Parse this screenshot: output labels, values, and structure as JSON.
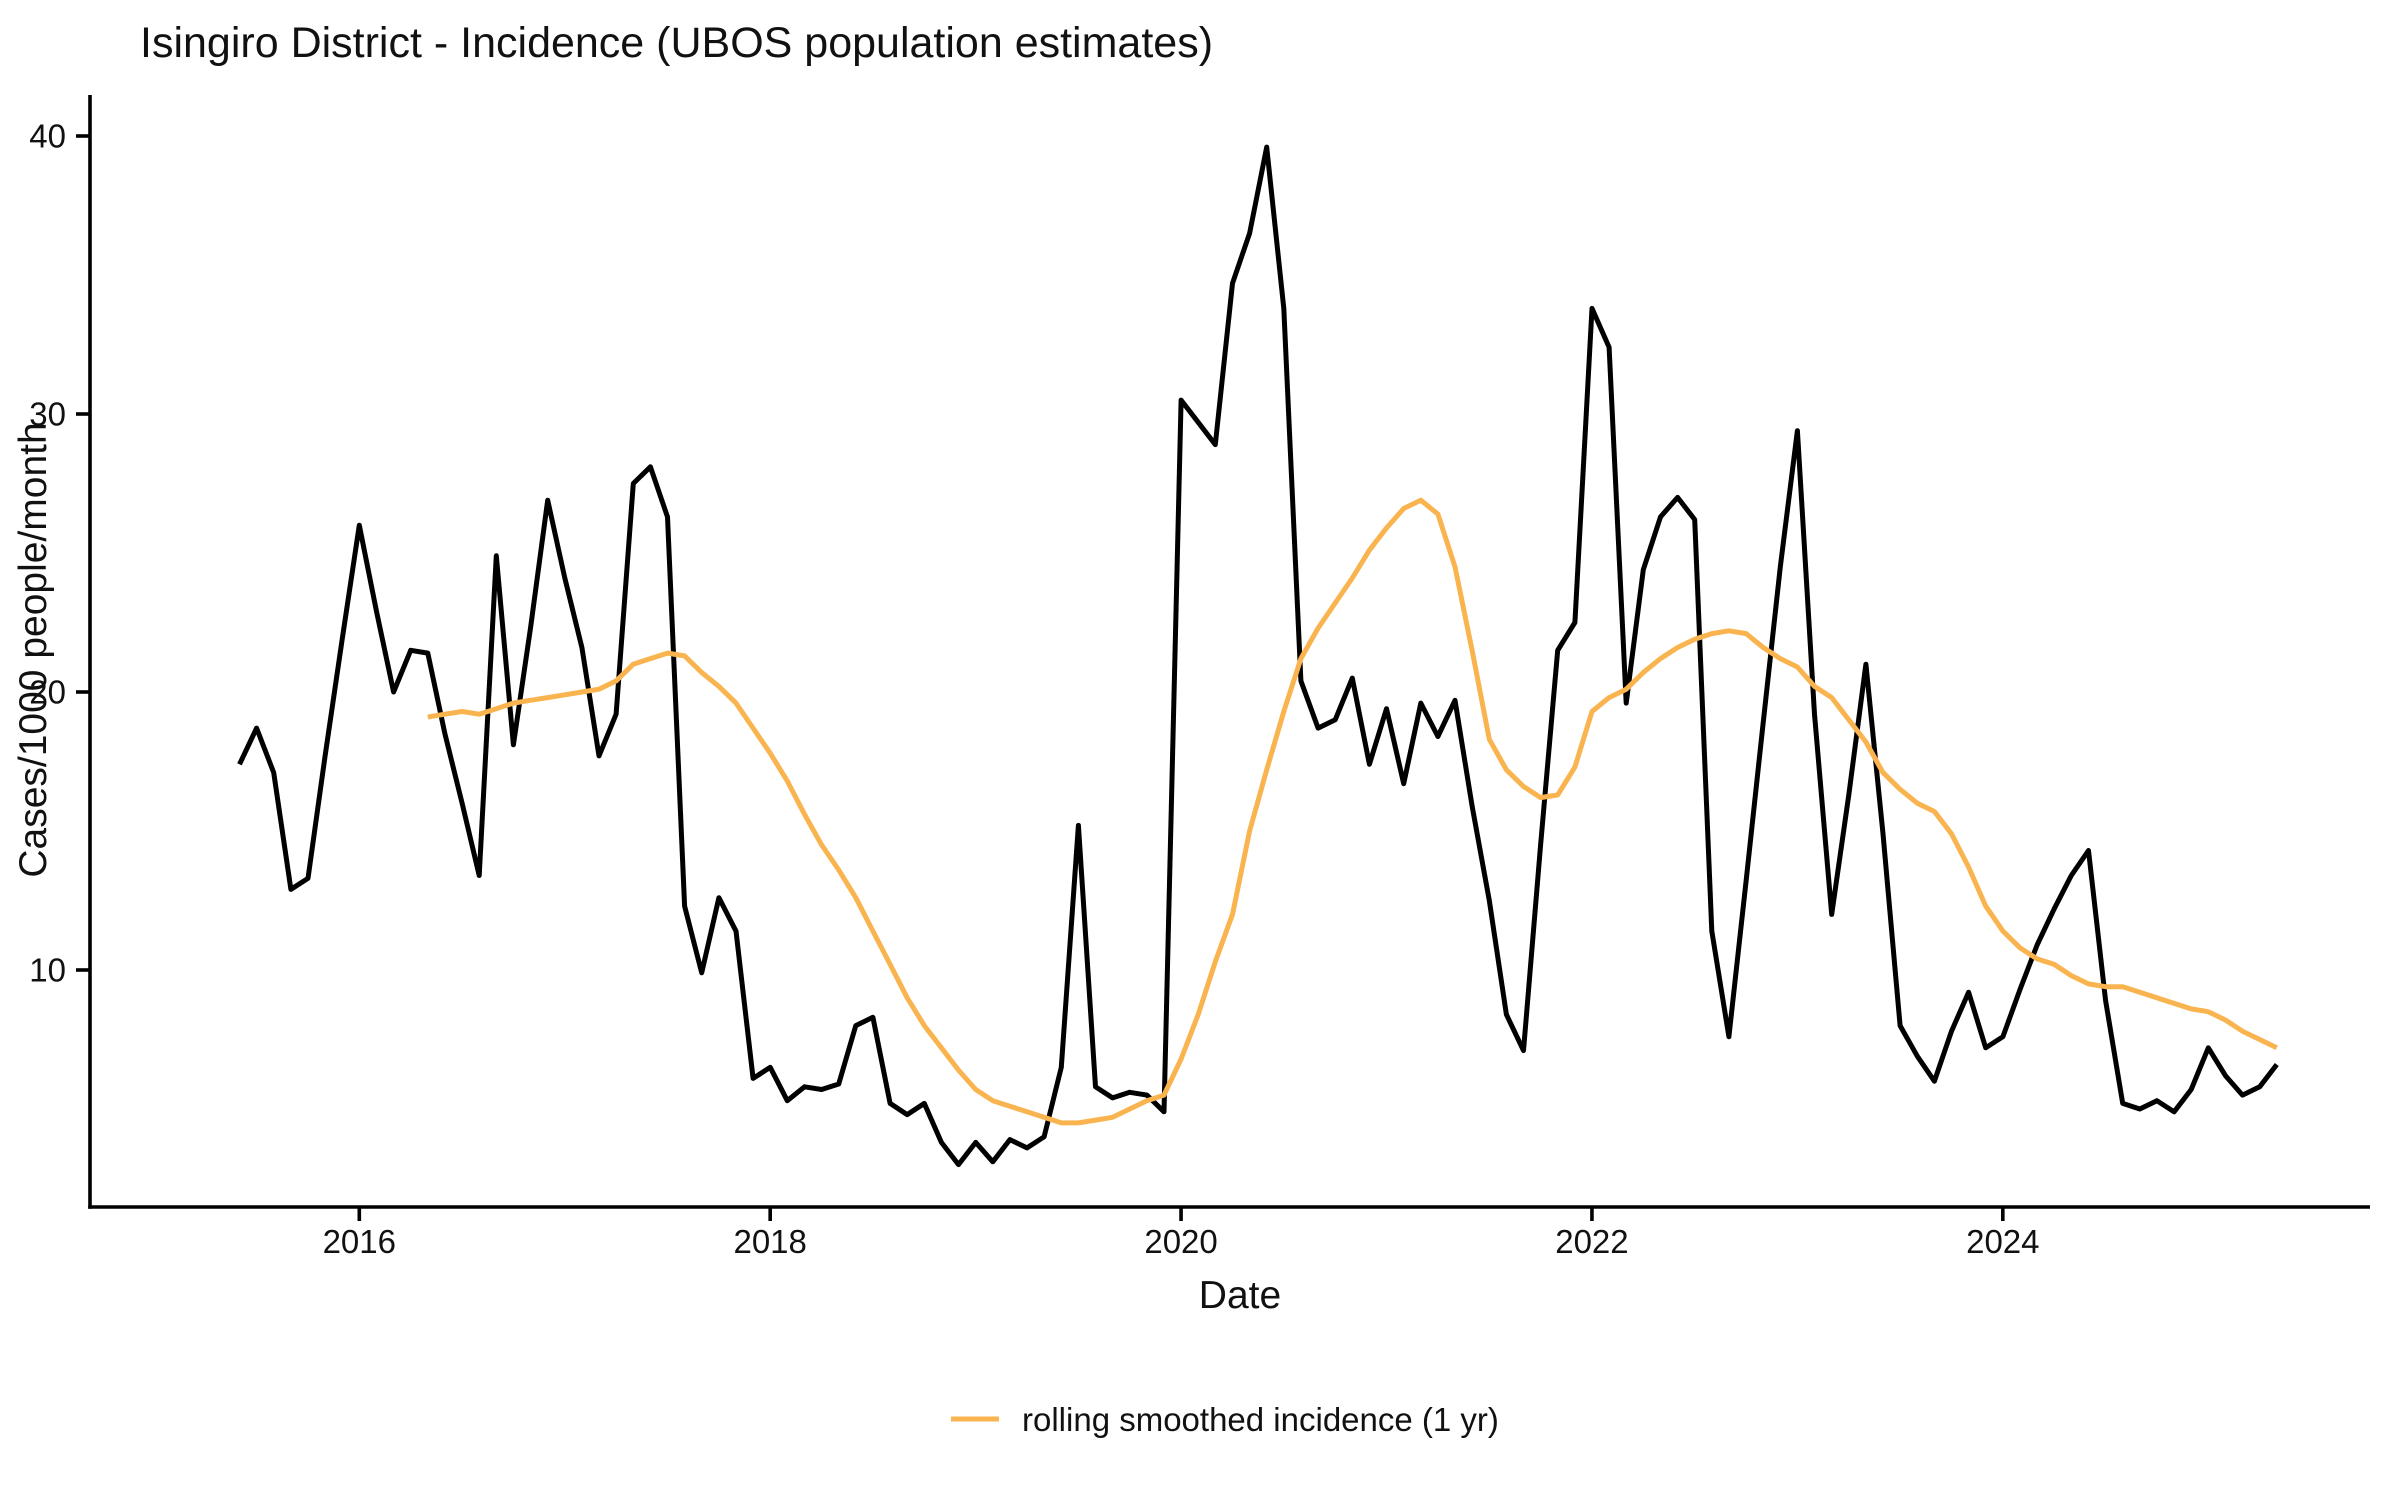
{
  "title": "Isingiro District - Incidence (UBOS population estimates)",
  "axes": {
    "x_label": "Date",
    "y_label": "Cases/1000 people/month",
    "y_ticks": [
      10,
      20,
      30,
      40
    ],
    "x_ticks": [
      2016,
      2018,
      2020,
      2022,
      2024
    ]
  },
  "legend": {
    "label": "rolling smoothed incidence (1 yr)",
    "swatch_color": "#F9B450"
  },
  "colors": {
    "raw_line": "#000000",
    "smoothed_line": "#F9B450",
    "axis": "#000000",
    "text": "#111111",
    "background": "#ffffff"
  },
  "chart_data": {
    "type": "line",
    "title": "Isingiro District - Incidence (UBOS population estimates)",
    "xlabel": "Date",
    "ylabel": "Cases/1000 people/month",
    "frequency": "monthly",
    "ylim": [
      1.5,
      41.5
    ],
    "grid": false,
    "legend_position": "bottom-center",
    "x_tick_years": [
      2016,
      2018,
      2020,
      2022,
      2024
    ],
    "y_tick_values": [
      10,
      20,
      30,
      40
    ],
    "series": [
      {
        "name": "monthly incidence",
        "color": "#000000",
        "start": "2015-06",
        "end": "2025-05",
        "values": [
          17.4,
          18.7,
          17.1,
          12.9,
          13.3,
          17.7,
          21.9,
          26.0,
          22.9,
          20.0,
          21.5,
          21.4,
          18.5,
          16.0,
          13.4,
          24.9,
          18.1,
          22.3,
          26.9,
          24.1,
          21.6,
          17.7,
          19.2,
          27.5,
          28.1,
          26.3,
          12.3,
          9.9,
          12.6,
          11.4,
          6.1,
          6.5,
          5.3,
          5.8,
          5.7,
          5.9,
          8.0,
          8.3,
          5.2,
          4.8,
          5.2,
          3.8,
          3.0,
          3.8,
          3.1,
          3.9,
          3.6,
          4.0,
          6.5,
          15.2,
          5.8,
          5.4,
          5.6,
          5.5,
          4.9,
          30.5,
          29.7,
          28.9,
          34.7,
          36.5,
          39.6,
          33.8,
          20.4,
          18.7,
          19.0,
          20.5,
          17.4,
          19.4,
          16.7,
          19.6,
          18.4,
          19.7,
          15.9,
          12.5,
          8.4,
          7.1,
          14.5,
          21.5,
          22.5,
          33.8,
          32.4,
          19.6,
          24.4,
          26.3,
          27.0,
          26.2,
          11.4,
          7.6,
          13.2,
          18.9,
          24.5,
          29.4,
          19.2,
          12.0,
          16.3,
          21.0,
          14.9,
          8.0,
          6.9,
          6.0,
          7.8,
          9.2,
          7.2,
          7.6,
          9.3,
          10.9,
          12.2,
          13.4,
          14.3,
          8.9,
          5.2,
          5.0,
          5.3,
          4.9,
          5.7,
          7.2,
          6.2,
          5.5,
          5.8,
          6.6
        ]
      },
      {
        "name": "rolling smoothed incidence (1 yr)",
        "color": "#F9B450",
        "start": "2016-05",
        "end": "2025-05",
        "values": [
          19.1,
          19.2,
          19.3,
          19.2,
          19.4,
          19.6,
          19.7,
          19.8,
          19.9,
          20.0,
          20.1,
          20.4,
          21.0,
          21.2,
          21.4,
          21.3,
          20.7,
          20.2,
          19.6,
          18.7,
          17.8,
          16.8,
          15.6,
          14.5,
          13.6,
          12.6,
          11.4,
          10.2,
          9.0,
          8.0,
          7.2,
          6.4,
          5.7,
          5.3,
          5.1,
          4.9,
          4.7,
          4.5,
          4.5,
          4.6,
          4.7,
          5.0,
          5.3,
          5.5,
          6.8,
          8.4,
          10.3,
          12.0,
          15.0,
          17.2,
          19.3,
          21.2,
          22.3,
          23.2,
          24.1,
          25.1,
          25.9,
          26.6,
          26.9,
          26.4,
          24.5,
          21.5,
          18.3,
          17.2,
          16.6,
          16.2,
          16.3,
          17.3,
          19.3,
          19.8,
          20.1,
          20.7,
          21.2,
          21.6,
          21.9,
          22.1,
          22.2,
          22.1,
          21.6,
          21.2,
          20.9,
          20.2,
          19.8,
          19.0,
          18.2,
          17.1,
          16.5,
          16.0,
          15.7,
          14.9,
          13.7,
          12.3,
          11.4,
          10.8,
          10.4,
          10.2,
          9.8,
          9.5,
          9.4,
          9.4,
          9.2,
          9.0,
          8.8,
          8.6,
          8.5,
          8.2,
          7.8,
          7.5,
          7.2
        ]
      }
    ]
  }
}
